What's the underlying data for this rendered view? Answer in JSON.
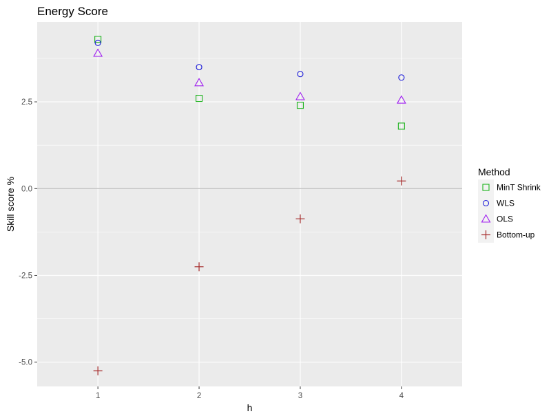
{
  "chart_data": {
    "type": "scatter",
    "title": "Energy Score",
    "xlabel": "h",
    "ylabel": "Skill score %",
    "x": [
      1,
      2,
      3,
      4
    ],
    "x_ticks": [
      "1",
      "2",
      "3",
      "4"
    ],
    "xlim": [
      0.4,
      4.6
    ],
    "ylim": [
      -5.7,
      4.8
    ],
    "y_ticks": [
      2.5,
      0.0,
      -2.5,
      -5.0
    ],
    "y_tick_labels": [
      "2.5",
      "0.0",
      "-2.5",
      "-5.0"
    ],
    "reference_line": 0,
    "grid": true,
    "legend": {
      "title": "Method",
      "position": "right"
    },
    "series": [
      {
        "name": "MinT Shrink",
        "shape": "square",
        "color": "#1db31d",
        "values": [
          4.3,
          2.6,
          2.4,
          1.8
        ]
      },
      {
        "name": "WLS",
        "shape": "circle",
        "color": "#1a1ad9",
        "values": [
          4.2,
          3.5,
          3.3,
          3.2
        ]
      },
      {
        "name": "OLS",
        "shape": "triangle",
        "color": "#a020f0",
        "values": [
          3.9,
          3.05,
          2.65,
          2.55
        ]
      },
      {
        "name": "Bottom-up",
        "shape": "plus",
        "color": "#a52a2a",
        "values": [
          -5.25,
          -2.25,
          -0.87,
          0.22
        ]
      }
    ]
  }
}
